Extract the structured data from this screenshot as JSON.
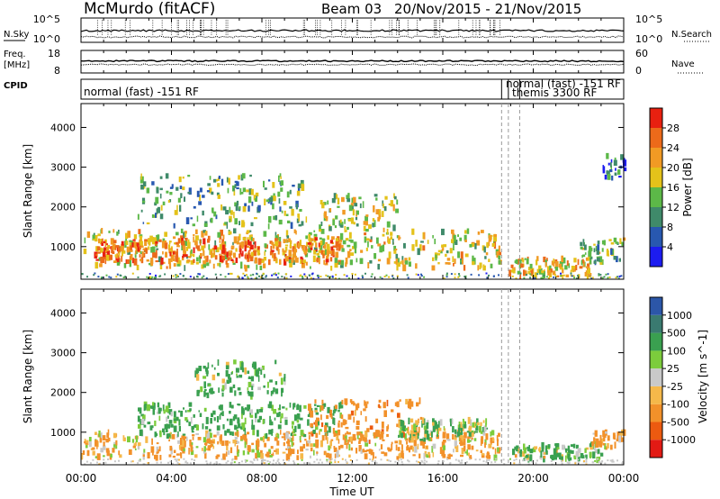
{
  "header": {
    "station": "McMurdo (fitACF)",
    "beam": "Beam 03",
    "date_range": "20/Nov/2015 - 21/Nov/2015"
  },
  "summary_panel": {
    "left_labels": [
      "N.Sky",
      "Freq.",
      "[MHz]",
      "CPID"
    ],
    "right_labels": [
      "N.Search",
      "Nave"
    ],
    "nsky_ticks": [
      "10^5",
      "10^0"
    ],
    "freq_ticks": [
      "18",
      "8"
    ],
    "nave_ticks": [
      "60",
      "0"
    ],
    "cpid_labels": [
      "normal (fast) -151 RF",
      "normal (fast) -151 RF",
      "themis 3300 RF"
    ],
    "cpid_change_hours": [
      18.6,
      18.9,
      19.4
    ]
  },
  "time_axis": {
    "label": "Time UT",
    "ticks": [
      "00:00",
      "04:00",
      "08:00",
      "12:00",
      "16:00",
      "20:00",
      "00:00"
    ],
    "tick_hours": [
      0,
      4,
      8,
      12,
      16,
      20,
      24
    ]
  },
  "range_axis": {
    "label": "Slant Range [km]",
    "ticks": [
      "1000",
      "2000",
      "3000",
      "4000"
    ],
    "tick_values": [
      1000,
      2000,
      3000,
      4000
    ],
    "min": 180,
    "max": 4600
  },
  "colors": {
    "power_scale": [
      "#1c1cf0",
      "#2858b0",
      "#3f8a6a",
      "#5cb848",
      "#e4c21a",
      "#f19a24",
      "#ec6a1a",
      "#e82010"
    ],
    "velocity_scale": [
      "#e21a14",
      "#ec5a10",
      "#f2912a",
      "#f5b84a",
      "#c9c9c9",
      "#7ccc3c",
      "#3aa050",
      "#3a7a70",
      "#2c56a8"
    ]
  },
  "chart_data": [
    {
      "type": "heatmap",
      "panel": "power",
      "x_label": "Time UT",
      "x_range_hours": [
        0,
        24
      ],
      "y_label": "Slant Range [km]",
      "y_range_km": [
        180,
        4600
      ],
      "colorbar": {
        "label": "Power [dB]",
        "ticks": [
          4,
          8,
          12,
          16,
          20,
          24,
          28
        ],
        "tick_labels": [
          "4",
          "8",
          "12",
          "16",
          "20",
          "24",
          "28"
        ],
        "range": [
          0,
          32
        ]
      },
      "echo_regions": [
        {
          "t_start": 0.0,
          "t_end": 18.5,
          "range_low": 450,
          "range_high": 1400,
          "value": 18
        },
        {
          "t_start": 0.5,
          "t_end": 11.5,
          "range_low": 600,
          "range_high": 1200,
          "value": 24
        },
        {
          "t_start": 2.5,
          "t_end": 10.0,
          "range_low": 1500,
          "range_high": 2800,
          "value": 12
        },
        {
          "t_start": 10.5,
          "t_end": 14.0,
          "range_low": 1400,
          "range_high": 2300,
          "value": 16
        },
        {
          "t_start": 18.9,
          "t_end": 22.5,
          "range_low": 250,
          "range_high": 700,
          "value": 20
        },
        {
          "t_start": 22.0,
          "t_end": 24.0,
          "range_low": 600,
          "range_high": 1200,
          "value": 14
        },
        {
          "t_start": 23.0,
          "t_end": 24.0,
          "range_low": 2700,
          "range_high": 3300,
          "value": 8
        }
      ]
    },
    {
      "type": "heatmap",
      "panel": "velocity",
      "x_label": "Time UT",
      "x_range_hours": [
        0,
        24
      ],
      "y_label": "Slant Range [km]",
      "y_range_km": [
        180,
        4600
      ],
      "colorbar": {
        "label": "Velocity [m s^-1]",
        "ticks": [
          -1000,
          -500,
          -100,
          -25,
          25,
          100,
          500,
          1000
        ],
        "tick_labels": [
          "-1000",
          "-500",
          "-100",
          "-25",
          "25",
          "100",
          "500",
          "1000"
        ]
      },
      "echo_regions": [
        {
          "t_start": 0.0,
          "t_end": 18.5,
          "range_low": 350,
          "range_high": 1000,
          "value": -150
        },
        {
          "t_start": 2.5,
          "t_end": 11.5,
          "range_low": 900,
          "range_high": 1700,
          "value": 250
        },
        {
          "t_start": 5.0,
          "t_end": 9.0,
          "range_low": 1900,
          "range_high": 2800,
          "value": 200
        },
        {
          "t_start": 10.0,
          "t_end": 15.0,
          "range_low": 700,
          "range_high": 1800,
          "value": -300
        },
        {
          "t_start": 14.0,
          "t_end": 18.0,
          "range_low": 800,
          "range_high": 1300,
          "value": 150
        },
        {
          "t_start": 19.0,
          "t_end": 23.0,
          "range_low": 300,
          "range_high": 700,
          "value": 120
        },
        {
          "t_start": 22.5,
          "t_end": 24.0,
          "range_low": 600,
          "range_high": 1000,
          "value": -200
        }
      ]
    }
  ]
}
